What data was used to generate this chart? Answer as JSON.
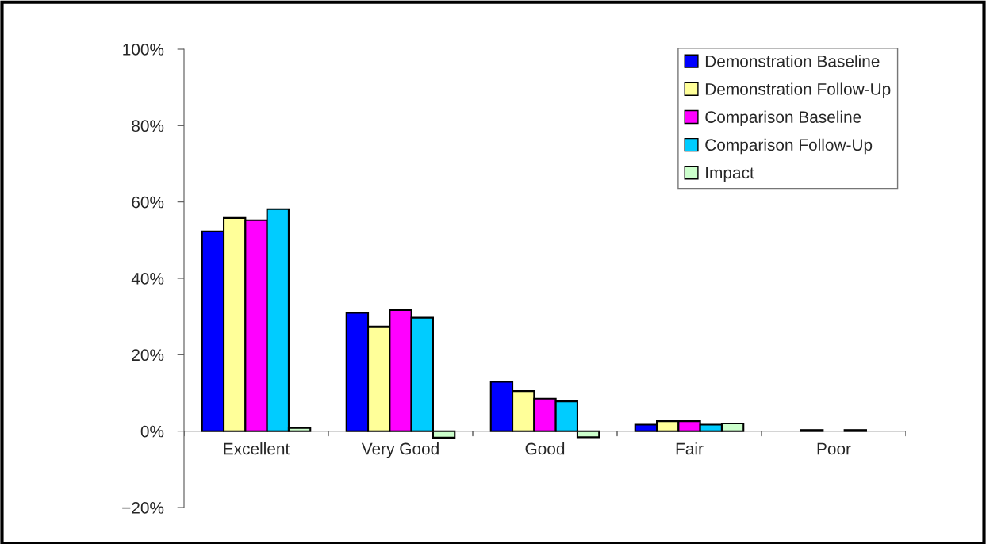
{
  "chart_data": {
    "type": "bar",
    "categories": [
      "Excellent",
      "Very Good",
      "Good",
      "Fair",
      "Poor"
    ],
    "series": [
      {
        "name": "Demonstration Baseline",
        "color": "#0000ff",
        "values": [
          52.3,
          31.0,
          12.9,
          1.7,
          null
        ]
      },
      {
        "name": "Demonstration Follow-Up",
        "color": "#ffff99",
        "values": [
          55.8,
          27.4,
          10.5,
          2.6,
          0.3
        ]
      },
      {
        "name": "Comparison Baseline",
        "color": "#ff00ff",
        "values": [
          55.2,
          31.7,
          8.5,
          2.6,
          null
        ]
      },
      {
        "name": "Comparison Follow-Up",
        "color": "#00ccff",
        "values": [
          58.1,
          29.7,
          7.8,
          1.7,
          0.3
        ]
      },
      {
        "name": "Impact",
        "color": "#ccffcc",
        "values": [
          0.8,
          -1.7,
          -1.6,
          2.0,
          null
        ]
      }
    ],
    "ylim": [
      -20,
      100
    ],
    "yticks": [
      {
        "value": -20,
        "label": "−20%"
      },
      {
        "value": 0,
        "label": "0%"
      },
      {
        "value": 20,
        "label": "20%"
      },
      {
        "value": 40,
        "label": "40%"
      },
      {
        "value": 60,
        "label": "60%"
      },
      {
        "value": 80,
        "label": "80%"
      },
      {
        "value": 100,
        "label": "100%"
      }
    ],
    "grid": false,
    "legend": "top right"
  }
}
